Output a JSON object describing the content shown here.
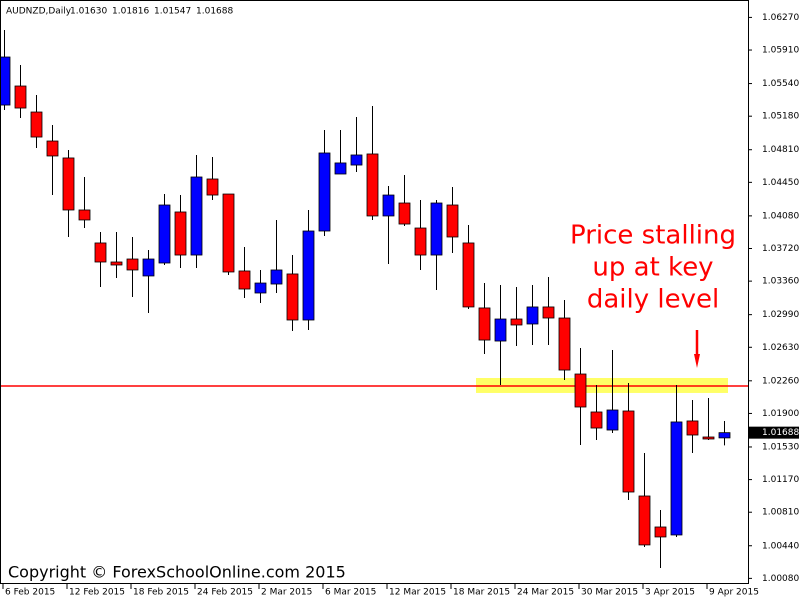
{
  "chart_data": {
    "type": "candlestick",
    "title": "AUDNZD,Daily",
    "title_values": [
      "1.01630",
      "1.01816",
      "1.01547",
      "1.01688"
    ],
    "categories": [
      "6 Feb 2015",
      null,
      null,
      null,
      "12 Feb 2015",
      null,
      null,
      null,
      "18 Feb 2015",
      null,
      null,
      null,
      "24 Feb 2015",
      null,
      null,
      null,
      "2 Mar 2015",
      null,
      null,
      null,
      "6 Mar 2015",
      null,
      null,
      null,
      "12 Mar 2015",
      null,
      null,
      null,
      "18 Mar 2015",
      null,
      null,
      null,
      "24 Mar 2015",
      null,
      null,
      null,
      "30 Mar 2015",
      null,
      null,
      null,
      "3 Apr 2015",
      null,
      null,
      null,
      "9 Apr 2015",
      null
    ],
    "open": [
      1.05303,
      1.05513,
      1.05226,
      1.04906,
      1.04719,
      1.04145,
      1.03781,
      1.03571,
      1.03604,
      1.03417,
      1.0356,
      1.04123,
      1.03648,
      1.04487,
      1.04321,
      1.03472,
      1.03229,
      1.03328,
      1.03439,
      1.02931,
      1.03913,
      1.04542,
      1.04641,
      1.04763,
      1.04079,
      1.04222,
      1.03946,
      1.03648,
      1.042,
      1.03781,
      1.03064,
      1.02699,
      1.02942,
      1.02887,
      1.03075,
      1.02953,
      1.02335,
      1.01916,
      1.01717,
      1.01927,
      1.00989,
      1.00647,
      1.00559,
      1.01817,
      1.0164,
      1.0163
    ],
    "high": [
      1.06131,
      1.05745,
      1.05414,
      1.05083,
      1.04807,
      1.04509,
      1.03902,
      1.03902,
      1.03847,
      1.03704,
      1.04321,
      1.0431,
      1.04752,
      1.0473,
      1.04321,
      1.03737,
      1.03483,
      1.04035,
      1.03648,
      1.04145,
      1.05028,
      1.05028,
      1.05171,
      1.05292,
      1.0441,
      1.04531,
      1.04255,
      1.04255,
      1.04399,
      1.03979,
      1.03339,
      1.03317,
      1.03295,
      1.03317,
      1.03406,
      1.03152,
      1.02622,
      1.02214,
      1.026,
      1.02236,
      1.01464,
      1.00835,
      1.02214,
      1.02048,
      1.02071,
      1.01816
    ],
    "low": [
      1.05248,
      1.0516,
      1.04829,
      1.0431,
      1.03847,
      1.03946,
      1.03295,
      1.03395,
      1.03185,
      1.03008,
      1.03538,
      1.03505,
      1.03505,
      1.04255,
      1.03428,
      1.03174,
      1.03119,
      1.03229,
      1.0281,
      1.02821,
      1.03858,
      1.04542,
      1.04564,
      1.04035,
      1.03549,
      1.03968,
      1.03483,
      1.03262,
      1.0367,
      1.03053,
      1.02556,
      1.02214,
      1.02644,
      1.02655,
      1.02655,
      1.02269,
      1.01552,
      1.01607,
      1.01684,
      1.00945,
      1.00426,
      1.00195,
      1.00537,
      1.01464,
      1.01607,
      1.01547
    ],
    "close": [
      1.05833,
      1.0527,
      1.0495,
      1.04741,
      1.04145,
      1.04035,
      1.03571,
      1.03538,
      1.03483,
      1.03604,
      1.042,
      1.03648,
      1.04509,
      1.0431,
      1.03461,
      1.03273,
      1.03339,
      1.03483,
      1.02931,
      1.03913,
      1.04774,
      1.04664,
      1.04752,
      1.04079,
      1.0431,
      1.0399,
      1.03648,
      1.04222,
      1.03847,
      1.03075,
      1.0271,
      1.02942,
      1.02876,
      1.03075,
      1.02953,
      1.02379,
      1.01971,
      1.01739,
      1.01938,
      1.01033,
      1.00449,
      1.00537,
      1.01806,
      1.01662,
      1.01618,
      1.01688
    ],
    "up_color": "#0000ff",
    "down_color": "#ff0000",
    "ylim": [
      1.0004,
      1.0644
    ],
    "yticks": [
      {
        "value": 1.0627,
        "label": "1.06270"
      },
      {
        "value": 1.0591,
        "label": "1.05910"
      },
      {
        "value": 1.0554,
        "label": "1.05540"
      },
      {
        "value": 1.0518,
        "label": "1.05180"
      },
      {
        "value": 1.0481,
        "label": "1.04810"
      },
      {
        "value": 1.0445,
        "label": "1.04450"
      },
      {
        "value": 1.0408,
        "label": "1.04080"
      },
      {
        "value": 1.0372,
        "label": "1.03720"
      },
      {
        "value": 1.0336,
        "label": "1.03360"
      },
      {
        "value": 1.0299,
        "label": "1.02990"
      },
      {
        "value": 1.0263,
        "label": "1.02630"
      },
      {
        "value": 1.0226,
        "label": "1.02260"
      },
      {
        "value": 1.019,
        "label": "1.01900"
      },
      {
        "value": 1.0153,
        "label": "1.01530"
      },
      {
        "value": 1.0117,
        "label": "1.01170"
      },
      {
        "value": 1.0081,
        "label": "1.00810"
      },
      {
        "value": 1.0044,
        "label": "1.00440"
      },
      {
        "value": 1.0008,
        "label": "1.00080"
      }
    ],
    "current_price": {
      "value": 1.01688,
      "label": "1.01688"
    },
    "level": 1.02203,
    "level_color": "#ff0000",
    "zone": [
      1.02126,
      1.02291
    ],
    "zone_color": "#ffff66",
    "annotation": [
      "Price stalling",
      "up at key",
      "daily level"
    ],
    "copyright": "Copyright © ForexSchoolOnline.com 2015"
  }
}
